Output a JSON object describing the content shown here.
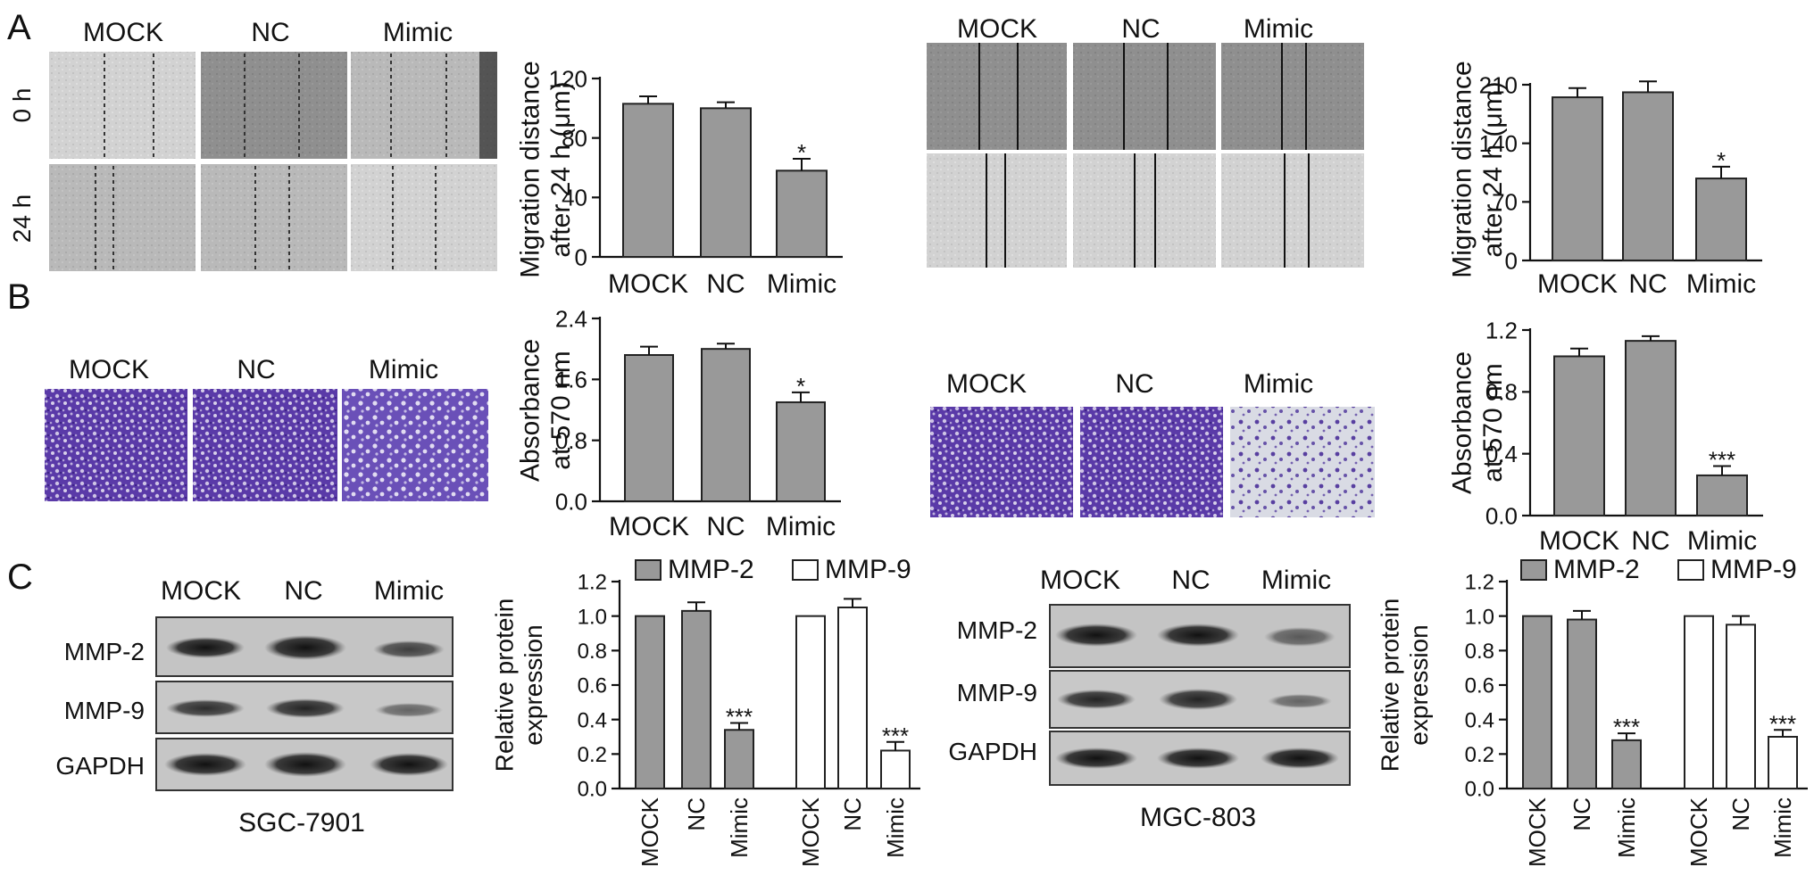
{
  "figure": {
    "panel_letters": [
      "A",
      "B",
      "C"
    ],
    "colors": {
      "bar_gray": "#999999",
      "bar_white": "#ffffff",
      "crystal_violet": "#5a3aa8",
      "micrograph_gray": "#b4b4b4",
      "blot_band": "#202020"
    }
  },
  "images": {
    "a_left": {
      "col_labels": [
        "MOCK",
        "NC",
        "Mimic"
      ],
      "row_labels": [
        "0 h",
        "24 h"
      ]
    },
    "a_right": {
      "col_labels": [
        "MOCK",
        "NC",
        "Mimic"
      ]
    },
    "b_left": {
      "col_labels": [
        "MOCK",
        "NC",
        "Mimic"
      ]
    },
    "b_right": {
      "col_labels": [
        "MOCK",
        "NC",
        "Mimic"
      ]
    },
    "c_left": {
      "col_labels": [
        "MOCK",
        "NC",
        "Mimic"
      ],
      "row_labels": [
        "MMP-2",
        "MMP-9",
        "GAPDH"
      ],
      "cell_line": "SGC-7901"
    },
    "c_right": {
      "col_labels": [
        "MOCK",
        "NC",
        "Mimic"
      ],
      "row_labels": [
        "MMP-2",
        "MMP-9",
        "GAPDH"
      ],
      "cell_line": "MGC-803"
    }
  },
  "chart_data": [
    {
      "id": "A-SGC7901",
      "type": "bar",
      "ylabel": [
        "Migration distance",
        "after 24 h (μm)"
      ],
      "ylim": [
        0,
        120
      ],
      "yticks": [
        "0",
        "40",
        "80",
        "120"
      ],
      "categories": [
        "MOCK",
        "NC",
        "Mimic"
      ],
      "values": [
        103,
        100,
        58
      ],
      "errors": [
        5,
        4,
        8
      ],
      "annotations": [
        "",
        "",
        "*"
      ]
    },
    {
      "id": "A-MGC803",
      "type": "bar",
      "ylabel": [
        "Migration distance",
        "after 24 h (μm)"
      ],
      "ylim": [
        0,
        210
      ],
      "yticks": [
        "0",
        "70",
        "140",
        "210"
      ],
      "categories": [
        "MOCK",
        "NC",
        "Mimic"
      ],
      "values": [
        195,
        201,
        98
      ],
      "errors": [
        11,
        13,
        14
      ],
      "annotations": [
        "",
        "",
        "*"
      ]
    },
    {
      "id": "B-SGC7901",
      "type": "bar",
      "ylabel": [
        "Absorbance",
        "at 570 nm"
      ],
      "ylim": [
        0,
        2.4
      ],
      "yticks": [
        "0.0",
        "0.8",
        "1.6",
        "2.4"
      ],
      "categories": [
        "MOCK",
        "NC",
        "Mimic"
      ],
      "values": [
        1.92,
        2.0,
        1.3
      ],
      "errors": [
        0.11,
        0.07,
        0.13
      ],
      "annotations": [
        "",
        "",
        "*"
      ]
    },
    {
      "id": "B-MGC803",
      "type": "bar",
      "ylabel": [
        "Absorbance",
        "at 570 nm"
      ],
      "ylim": [
        0,
        1.2
      ],
      "yticks": [
        "0.0",
        "0.4",
        "0.8",
        "1.2"
      ],
      "categories": [
        "MOCK",
        "NC",
        "Mimic"
      ],
      "values": [
        1.03,
        1.13,
        0.26
      ],
      "errors": [
        0.05,
        0.03,
        0.06
      ],
      "annotations": [
        "",
        "",
        "***"
      ]
    },
    {
      "id": "C-SGC7901",
      "type": "bar",
      "ylabel": [
        "Relative protein",
        "expression"
      ],
      "ylim": [
        0,
        1.2
      ],
      "yticks": [
        "0.0",
        "0.2",
        "0.4",
        "0.6",
        "0.8",
        "1.0",
        "1.2"
      ],
      "categories": [
        "MOCK",
        "NC",
        "Mimic"
      ],
      "series": [
        {
          "name": "MMP-2",
          "values": [
            1.0,
            1.03,
            0.34
          ],
          "errors": [
            0,
            0.05,
            0.04
          ],
          "annotations": [
            "",
            "",
            "***"
          ]
        },
        {
          "name": "MMP-9",
          "values": [
            1.0,
            1.05,
            0.22
          ],
          "errors": [
            0,
            0.05,
            0.05
          ],
          "annotations": [
            "",
            "",
            "***"
          ]
        }
      ]
    },
    {
      "id": "C-MGC803",
      "type": "bar",
      "ylabel": [
        "Relative protein",
        "expression"
      ],
      "ylim": [
        0,
        1.2
      ],
      "yticks": [
        "0.0",
        "0.2",
        "0.4",
        "0.6",
        "0.8",
        "1.0",
        "1.2"
      ],
      "categories": [
        "MOCK",
        "NC",
        "Mimic"
      ],
      "series": [
        {
          "name": "MMP-2",
          "values": [
            1.0,
            0.98,
            0.28
          ],
          "errors": [
            0,
            0.05,
            0.04
          ],
          "annotations": [
            "",
            "",
            "***"
          ]
        },
        {
          "name": "MMP-9",
          "values": [
            1.0,
            0.95,
            0.3
          ],
          "errors": [
            0,
            0.05,
            0.04
          ],
          "annotations": [
            "",
            "",
            "***"
          ]
        }
      ]
    }
  ]
}
